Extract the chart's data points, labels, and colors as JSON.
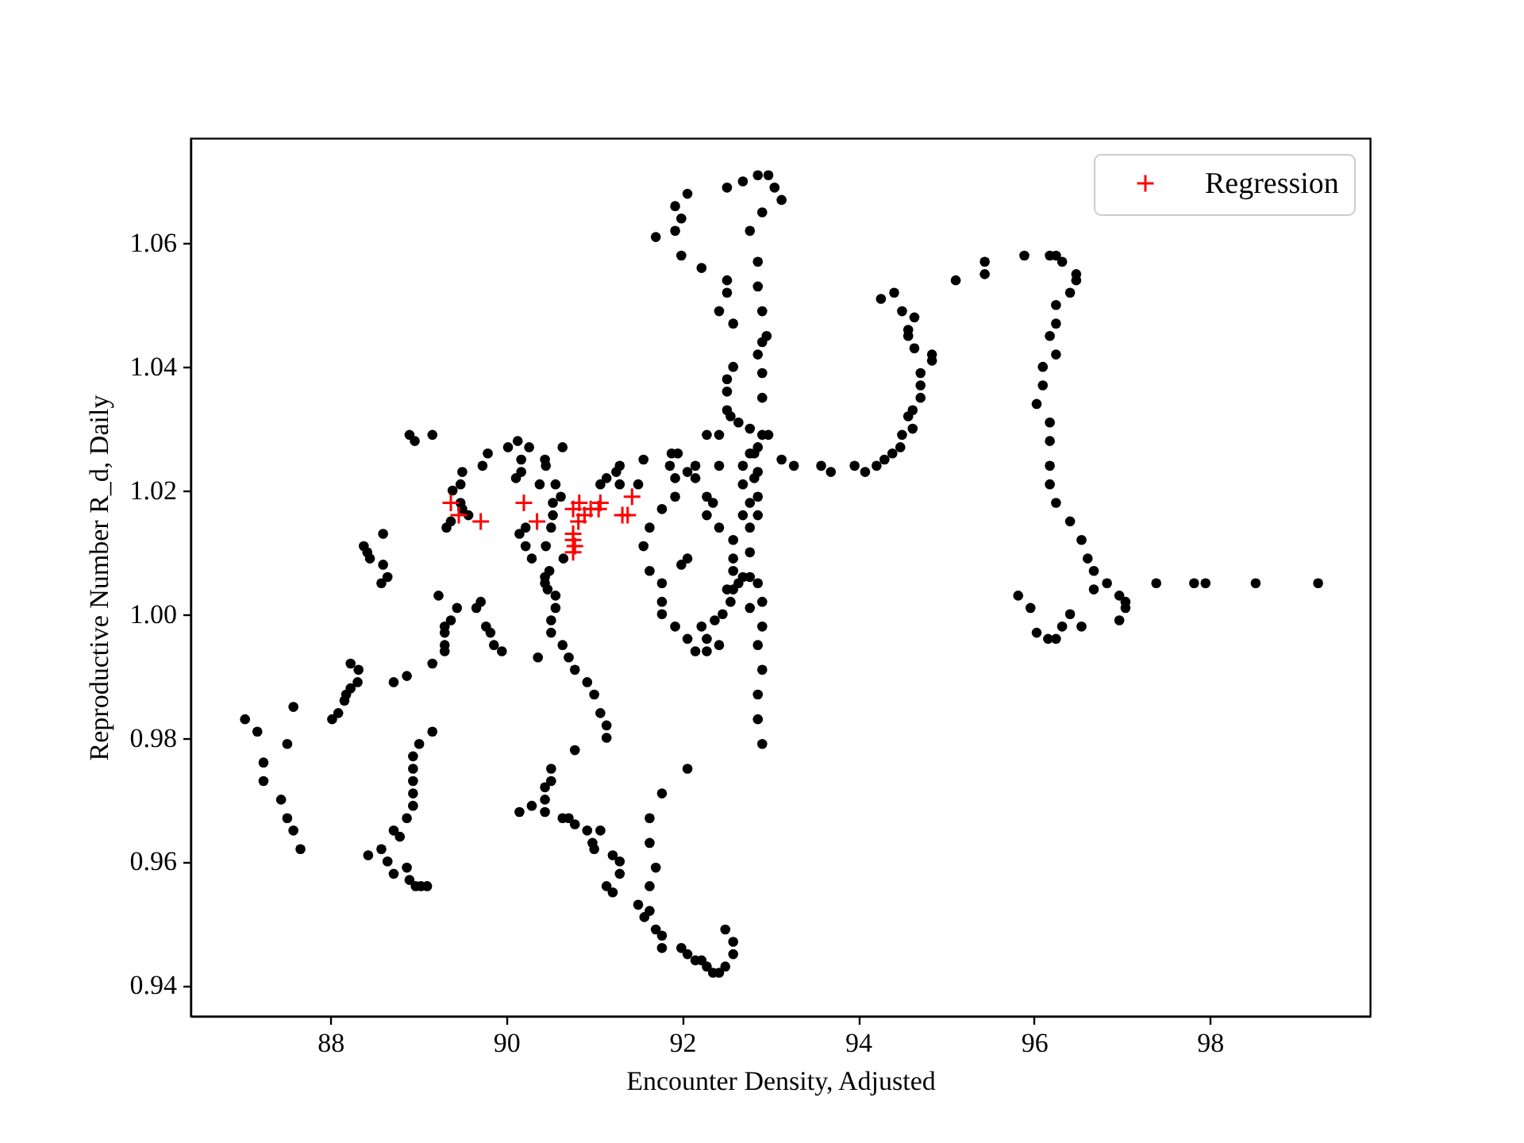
{
  "chart_data": {
    "type": "scatter",
    "xlabel": "Encounter Density, Adjusted",
    "ylabel": "Reproductive Number R_d, Daily",
    "xlim": [
      86.41,
      99.82
    ],
    "ylim": [
      0.935,
      1.077
    ],
    "xticks": [
      88,
      90,
      92,
      94,
      96,
      98
    ],
    "yticks": [
      0.94,
      0.96,
      0.98,
      {
        "value": 1.0,
        "label": "1.00"
      },
      1.02,
      1.04,
      1.06
    ],
    "legend": "top right",
    "series": [
      {
        "color": "#000000",
        "marker": "circle",
        "x": [
          87.03,
          87.17,
          87.24,
          87.24,
          87.44,
          87.51,
          87.58,
          87.66,
          87.58,
          87.51,
          88.02,
          88.09,
          88.16,
          88.18,
          88.23,
          88.31,
          88.32,
          88.23,
          88.72,
          88.87,
          89.16,
          89.23,
          89.3,
          89.3,
          89.3,
          89.3,
          89.37,
          89.44,
          89.66,
          89.71,
          89.77,
          89.82,
          89.86,
          89.95,
          90.36,
          90.56,
          90.51,
          90.51,
          90.64,
          90.71,
          90.78,
          90.92,
          91.0,
          91.07,
          91.14,
          91.14,
          89.16,
          89.01,
          88.94,
          88.94,
          88.94,
          88.94,
          88.94,
          88.87,
          88.72,
          88.79,
          88.58,
          88.43,
          88.65,
          88.72,
          88.87,
          88.9,
          88.97,
          89.1,
          89.03,
          90.78,
          90.51,
          90.51,
          90.44,
          90.44,
          90.44,
          90.29,
          90.15,
          90.64,
          90.71,
          90.78,
          90.92,
          90.98,
          91.0,
          91.07,
          91.21,
          91.29,
          91.29,
          91.14,
          91.21,
          88.58,
          90.44,
          90.44,
          90.47,
          90.56,
          88.9,
          88.96,
          89.16,
          89.73,
          89.79,
          89.5,
          89.48,
          89.39,
          89.48,
          89.5,
          89.57,
          89.32,
          89.37,
          90.02,
          90.13,
          90.26,
          90.17,
          90.17,
          90.11,
          90.38,
          90.44,
          90.45,
          90.56,
          90.64,
          90.62,
          90.53,
          90.53,
          90.51,
          90.22,
          90.15,
          90.22,
          90.29,
          90.45,
          90.65,
          90.49,
          88.38,
          88.42,
          88.45,
          88.6,
          88.6,
          88.65,
          92.51,
          92.69,
          92.86,
          92.98,
          93.05,
          93.13,
          92.91,
          92.77,
          92.86,
          92.86,
          92.91,
          92.96,
          92.91,
          92.86,
          92.91,
          92.91,
          92.06,
          91.92,
          91.99,
          91.92,
          91.7,
          91.99,
          92.22,
          92.51,
          92.51,
          92.42,
          92.58,
          92.58,
          92.51,
          92.51,
          92.51,
          92.55,
          92.64,
          92.77,
          92.91,
          92.98,
          92.86,
          92.77,
          92.69,
          92.69,
          92.77,
          92.69,
          92.77,
          92.58,
          92.58,
          92.77,
          92.58,
          92.69,
          92.82,
          92.86,
          92.86,
          92.86,
          92.82,
          93.13,
          93.27,
          93.58,
          93.69,
          93.96,
          94.08,
          94.21,
          94.3,
          94.39,
          94.48,
          94.5,
          94.62,
          94.57,
          94.62,
          94.71,
          94.71,
          94.71,
          94.84,
          94.84,
          94.64,
          94.57,
          94.57,
          94.64,
          94.5,
          94.26,
          94.41,
          95.11,
          95.44,
          95.44,
          92.28,
          92.42,
          91.88,
          91.95,
          91.86,
          91.56,
          91.92,
          92.06,
          92.15,
          92.15,
          91.92,
          92.42,
          92.28,
          92.35,
          92.28,
          92.42,
          91.77,
          91.63,
          91.56,
          91.63,
          91.99,
          92.06,
          91.29,
          91.25,
          91.14,
          91.07,
          91.29,
          91.5,
          91.77,
          91.77,
          91.77,
          91.92,
          92.06,
          92.15,
          92.28,
          92.42,
          92.28,
          92.22,
          92.37,
          92.46,
          92.55,
          92.58,
          92.51,
          92.64,
          92.77,
          92.86,
          92.91,
          92.77,
          92.91,
          92.86,
          92.91,
          92.86,
          92.86,
          92.91,
          92.06,
          91.77,
          91.63,
          91.63,
          91.7,
          91.63,
          91.5,
          91.57,
          91.63,
          91.7,
          91.77,
          91.77,
          91.99,
          92.06,
          92.15,
          92.22,
          92.28,
          92.35,
          92.42,
          92.49,
          92.58,
          92.58,
          92.49,
          95.89,
          96.18,
          96.25,
          96.32,
          96.48,
          96.48,
          96.41,
          96.25,
          96.25,
          96.18,
          96.25,
          96.1,
          96.1,
          96.03,
          96.18,
          96.18,
          96.18,
          96.18,
          96.25,
          96.41,
          96.54,
          96.61,
          96.68,
          95.82,
          95.96,
          96.03,
          96.16,
          96.25,
          96.32,
          96.41,
          96.54,
          96.68,
          96.83,
          96.97,
          97.04,
          96.97,
          97.04,
          97.39,
          97.82,
          97.95,
          98.52,
          99.23
        ],
        "values": [
          0.983,
          0.981,
          0.976,
          0.973,
          0.97,
          0.967,
          0.965,
          0.962,
          0.985,
          0.979,
          0.983,
          0.984,
          0.986,
          0.987,
          0.988,
          0.989,
          0.991,
          0.992,
          0.989,
          0.99,
          0.992,
          1.003,
          0.994,
          0.995,
          0.997,
          0.998,
          0.999,
          1.001,
          1.001,
          1.002,
          0.998,
          0.997,
          0.995,
          0.994,
          0.993,
          1.001,
          0.999,
          0.997,
          0.995,
          0.993,
          0.991,
          0.989,
          0.987,
          0.984,
          0.982,
          0.98,
          0.981,
          0.979,
          0.977,
          0.975,
          0.973,
          0.971,
          0.969,
          0.967,
          0.965,
          0.964,
          0.962,
          0.961,
          0.96,
          0.958,
          0.959,
          0.957,
          0.956,
          0.956,
          0.956,
          0.978,
          0.975,
          0.973,
          0.972,
          0.97,
          0.968,
          0.969,
          0.968,
          0.967,
          0.967,
          0.966,
          0.965,
          0.963,
          0.962,
          0.965,
          0.961,
          0.96,
          0.958,
          0.956,
          0.955,
          1.005,
          1.006,
          1.005,
          1.004,
          1.003,
          1.029,
          1.028,
          1.029,
          1.024,
          1.026,
          1.023,
          1.021,
          1.02,
          1.018,
          1.017,
          1.016,
          1.014,
          1.015,
          1.027,
          1.028,
          1.027,
          1.025,
          1.023,
          1.022,
          1.021,
          1.025,
          1.024,
          1.021,
          1.027,
          1.019,
          1.018,
          1.016,
          1.014,
          1.014,
          1.013,
          1.011,
          1.009,
          1.011,
          1.009,
          1.007,
          1.011,
          1.01,
          1.009,
          1.013,
          1.008,
          1.006,
          1.069,
          1.07,
          1.071,
          1.071,
          1.069,
          1.067,
          1.065,
          1.062,
          1.057,
          1.053,
          1.049,
          1.045,
          1.044,
          1.042,
          1.039,
          1.035,
          1.068,
          1.066,
          1.064,
          1.062,
          1.061,
          1.058,
          1.056,
          1.054,
          1.052,
          1.049,
          1.047,
          1.04,
          1.038,
          1.036,
          1.033,
          1.032,
          1.031,
          1.03,
          1.029,
          1.029,
          1.027,
          1.026,
          1.024,
          1.021,
          1.018,
          1.016,
          1.014,
          1.012,
          1.009,
          1.01,
          1.007,
          1.006,
          1.026,
          1.023,
          1.019,
          1.016,
          1.022,
          1.025,
          1.024,
          1.024,
          1.023,
          1.024,
          1.023,
          1.024,
          1.025,
          1.026,
          1.027,
          1.029,
          1.03,
          1.032,
          1.033,
          1.035,
          1.037,
          1.039,
          1.041,
          1.042,
          1.043,
          1.045,
          1.046,
          1.048,
          1.049,
          1.051,
          1.052,
          1.054,
          1.057,
          1.055,
          1.029,
          1.029,
          1.026,
          1.026,
          1.024,
          1.025,
          1.022,
          1.023,
          1.024,
          1.022,
          1.019,
          1.024,
          1.019,
          1.018,
          1.016,
          1.014,
          1.017,
          1.014,
          1.011,
          1.007,
          1.008,
          1.009,
          1.024,
          1.023,
          1.022,
          1.021,
          1.021,
          1.021,
          1.005,
          1.002,
          1.0,
          0.998,
          0.996,
          0.994,
          0.994,
          0.995,
          0.996,
          0.998,
          0.999,
          1.0,
          1.002,
          1.004,
          1.004,
          1.005,
          1.006,
          1.005,
          1.002,
          1.001,
          0.998,
          0.995,
          0.991,
          0.987,
          0.983,
          0.979,
          0.975,
          0.971,
          0.967,
          0.963,
          0.959,
          0.956,
          0.953,
          0.951,
          0.952,
          0.949,
          0.948,
          0.946,
          0.946,
          0.945,
          0.944,
          0.944,
          0.943,
          0.942,
          0.942,
          0.943,
          0.945,
          0.947,
          0.949,
          1.058,
          1.058,
          1.058,
          1.057,
          1.055,
          1.054,
          1.052,
          1.05,
          1.047,
          1.045,
          1.042,
          1.04,
          1.037,
          1.034,
          1.031,
          1.028,
          1.024,
          1.021,
          1.018,
          1.015,
          1.012,
          1.009,
          1.007,
          1.003,
          1.001,
          0.997,
          0.996,
          0.996,
          0.998,
          1.0,
          0.998,
          1.004,
          1.005,
          1.003,
          1.001,
          0.999,
          1.002,
          1.005,
          1.005,
          1.005,
          1.005,
          1.005
        ]
      },
      {
        "name": "Regression",
        "color": "#ff0000",
        "marker": "cross",
        "x": [
          89.37,
          89.46,
          89.71,
          90.2,
          90.35,
          90.76,
          90.83,
          90.89,
          90.96,
          91.05,
          91.07,
          91.32,
          91.38,
          91.43,
          90.82,
          90.76,
          90.76,
          90.78,
          90.76
        ],
        "values": [
          1.018,
          1.016,
          1.015,
          1.018,
          1.015,
          1.017,
          1.018,
          1.016,
          1.017,
          1.017,
          1.018,
          1.016,
          1.016,
          1.019,
          1.015,
          1.013,
          1.012,
          1.011,
          1.01
        ]
      }
    ]
  }
}
